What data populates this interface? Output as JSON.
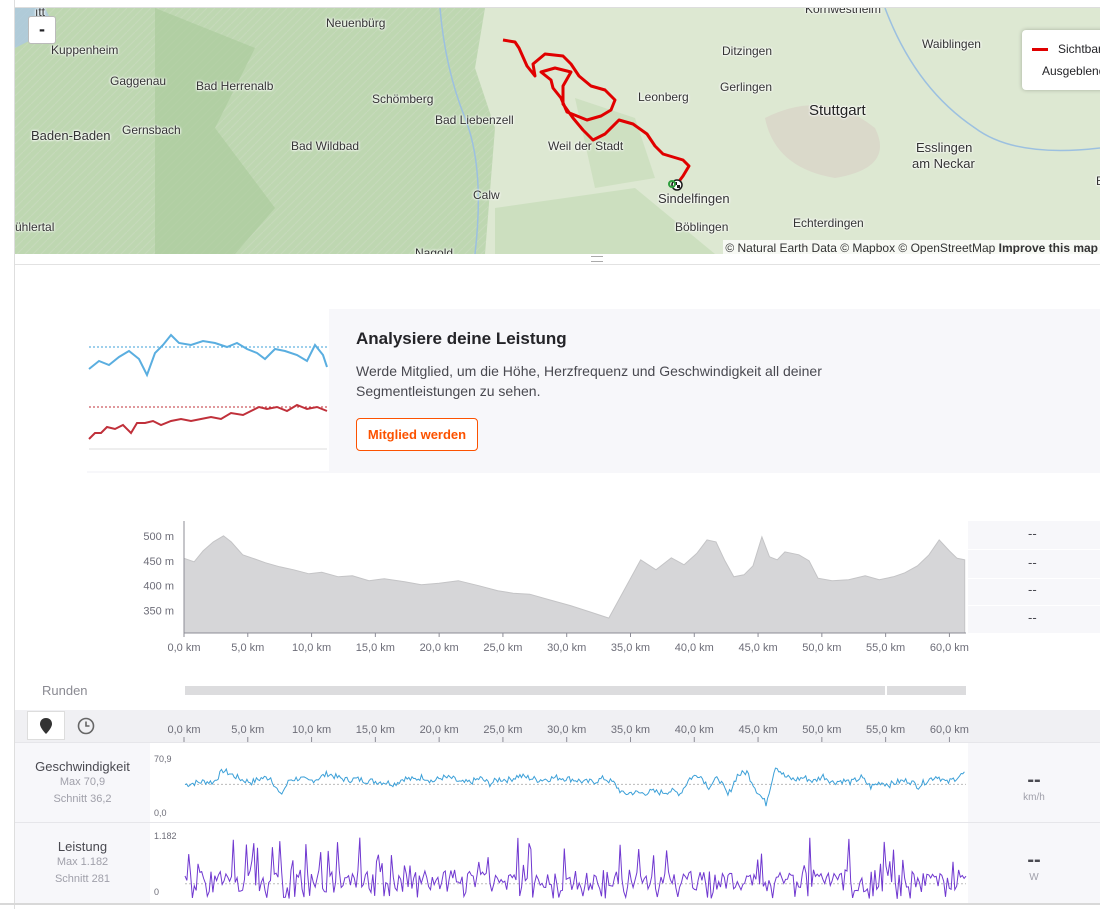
{
  "map": {
    "zoom_out_label": "-",
    "top_label": "Kornwestheim",
    "top_left_fragment": "ıtt",
    "places": [
      {
        "name": "Neuenbürg",
        "big": false
      },
      {
        "name": "Waiblingen",
        "big": false
      },
      {
        "name": "Kuppenheim",
        "big": false
      },
      {
        "name": "Ditzingen",
        "big": false
      },
      {
        "name": "Gaggenau",
        "big": false
      },
      {
        "name": "Bad Herrenalb",
        "big": false
      },
      {
        "name": "Leonberg",
        "big": false
      },
      {
        "name": "Gerlingen",
        "big": false
      },
      {
        "name": "Schömberg",
        "big": false
      },
      {
        "name": "Stuttgart",
        "big": true
      },
      {
        "name": "Bad Liebenzell",
        "big": false
      },
      {
        "name": "Baden-Baden",
        "big": true
      },
      {
        "name": "Gernsbach",
        "big": false
      },
      {
        "name": "Bad Wildbad",
        "big": false
      },
      {
        "name": "Weil der Stadt",
        "big": false
      },
      {
        "name": "Esslingen",
        "big": false
      },
      {
        "name": "am Neckar",
        "big": false
      },
      {
        "name": "Sindelfingen",
        "big": false
      },
      {
        "name": "Calw",
        "big": false
      },
      {
        "name": "ühlertal",
        "big": false
      },
      {
        "name": "Echterdingen",
        "big": false
      },
      {
        "name": "Böblingen",
        "big": false
      },
      {
        "name": "Nagold",
        "big": false
      },
      {
        "name": "E",
        "big": false
      }
    ],
    "legend": [
      {
        "label": "Sichtbar",
        "color": "#e00000"
      },
      {
        "label": "Ausgeblendet",
        "color": "#666666"
      }
    ],
    "attribution": "© Natural Earth Data © Mapbox © OpenStreetMap",
    "attribution_link": "Improve this map",
    "route_color": "#e00000"
  },
  "upsell": {
    "title": "Analysiere deine Leistung",
    "text": "Werde Mitglied, um die Höhe, Herzfrequenz und Geschwindigkeit all deiner Segmentleistungen zu sehen.",
    "button": "Mitglied werden",
    "accent": "#fc5200"
  },
  "chart_data": [
    {
      "type": "area",
      "name": "elevation",
      "y_unit": "m",
      "ylim": [
        305,
        530
      ],
      "yticks": [
        "500 m",
        "450 m",
        "400 m",
        "350 m"
      ],
      "ytick_values": [
        500,
        450,
        400,
        350
      ],
      "xlim": [
        0,
        61.3
      ],
      "xticks": [
        "0,0 km",
        "5,0 km",
        "10,0 km",
        "15,0 km",
        "20,0 km",
        "25,0 km",
        "30,0 km",
        "35,0 km",
        "40,0 km",
        "45,0 km",
        "50,0 km",
        "55,0 km",
        "60,0 km"
      ],
      "xtick_values": [
        0,
        5,
        10,
        15,
        20,
        25,
        30,
        35,
        40,
        45,
        50,
        55,
        60
      ],
      "x": [
        0,
        0.8,
        1.5,
        2.3,
        3.1,
        3.7,
        4.6,
        5.4,
        6.4,
        7.5,
        8.6,
        9.8,
        10.8,
        12.1,
        13.2,
        14.5,
        15.7,
        17.3,
        18.6,
        20.0,
        21.5,
        23.1,
        24.6,
        25.8,
        27.1,
        28.6,
        30.3,
        32.0,
        33.3,
        35.8,
        37.0,
        38.2,
        39.2,
        40.2,
        41.0,
        41.7,
        42.4,
        43.1,
        43.9,
        44.6,
        45.3,
        45.9,
        46.5,
        47.1,
        48.2,
        49.0,
        49.7,
        50.8,
        52.1,
        53.4,
        54.5,
        55.6,
        56.5,
        57.5,
        58.4,
        59.2,
        60.0,
        60.6,
        61.2
      ],
      "values": [
        455,
        448,
        470,
        488,
        500,
        488,
        462,
        455,
        446,
        438,
        432,
        424,
        427,
        418,
        420,
        410,
        414,
        408,
        402,
        405,
        410,
        400,
        390,
        385,
        383,
        372,
        360,
        346,
        335,
        452,
        432,
        456,
        442,
        465,
        492,
        488,
        450,
        418,
        422,
        440,
        498,
        458,
        452,
        468,
        462,
        450,
        415,
        410,
        412,
        420,
        412,
        418,
        426,
        440,
        462,
        492,
        470,
        455,
        452
      ]
    },
    {
      "type": "line",
      "name": "Geschwindigkeit",
      "y_unit": "km/h",
      "ylim": [
        0,
        70.9
      ],
      "yticks": [
        "70,9",
        "0,0"
      ],
      "max": "Max 70,9",
      "avg": "Schnitt 36,2",
      "avg_value": 36.2,
      "current": "--",
      "color": "#3ca0d8",
      "sparkline_values": [
        36,
        38,
        40,
        39,
        54,
        48,
        42,
        39,
        44,
        45,
        22,
        42,
        44,
        40,
        44,
        50,
        45,
        42,
        43,
        41,
        40,
        39,
        37,
        44,
        42,
        46,
        40,
        45,
        44,
        38,
        39,
        44,
        37,
        43,
        42,
        47,
        45,
        42,
        43,
        45,
        44,
        42,
        39,
        40,
        44,
        38,
        24,
        26,
        25,
        27,
        26,
        28,
        25,
        44,
        49,
        33,
        45,
        22,
        48,
        52,
        29,
        12,
        60,
        46,
        42,
        45,
        40,
        47,
        39,
        41,
        39,
        45,
        33,
        39,
        36,
        40,
        41,
        34,
        42,
        47,
        38,
        45,
        51
      ]
    },
    {
      "type": "line",
      "name": "Leistung",
      "y_unit": "W",
      "ylim": [
        0,
        1182
      ],
      "yticks": [
        "1.182",
        "0"
      ],
      "max": "Max 1.182",
      "avg": "Schnitt 281",
      "avg_value": 281,
      "current": "--",
      "color": "#7038d0"
    }
  ],
  "streams": {
    "x_ticks": [
      "0,0 km",
      "5,0 km",
      "10,0 km",
      "15,0 km",
      "20,0 km",
      "25,0 km",
      "30,0 km",
      "35,0 km",
      "40,0 km",
      "45,0 km",
      "50,0 km",
      "55,0 km",
      "60,0 km"
    ],
    "distance_mode_icon": "map-pin-icon",
    "time_mode_icon": "clock-icon"
  },
  "elevation_side": [
    "--",
    "--",
    "--",
    "--"
  ],
  "laps": {
    "label": "Runden"
  }
}
